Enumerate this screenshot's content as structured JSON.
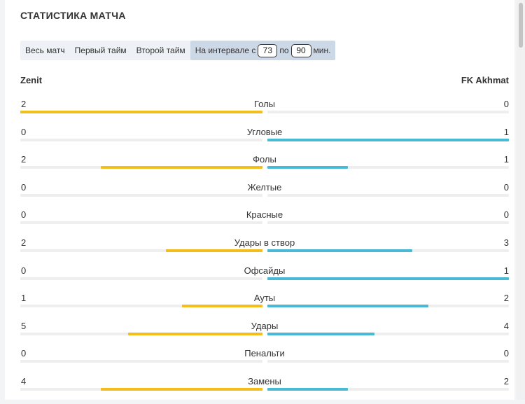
{
  "title": "СТАТИСТИКА МАТЧА",
  "tabs": {
    "full_match": "Весь матч",
    "first_half": "Первый тайм",
    "second_half": "Второй тайм",
    "interval_prefix": "На интервале с",
    "interval_from": "73",
    "interval_mid": "по",
    "interval_to": "90",
    "interval_suffix": "мин."
  },
  "teams": {
    "home": "Zenit",
    "away": "FK Akhmat"
  },
  "colors": {
    "home": "#f2bd1d",
    "away": "#4ab9d6",
    "track": "#eeeeee"
  },
  "stats": [
    {
      "label": "Голы",
      "home": "2",
      "away": "0",
      "home_share": 1.0,
      "away_share": 0.0
    },
    {
      "label": "Угловые",
      "home": "0",
      "away": "1",
      "home_share": 0.0,
      "away_share": 1.0
    },
    {
      "label": "Фолы",
      "home": "2",
      "away": "1",
      "home_share": 0.667,
      "away_share": 0.333
    },
    {
      "label": "Желтые",
      "home": "0",
      "away": "0",
      "home_share": 0.0,
      "away_share": 0.0
    },
    {
      "label": "Красные",
      "home": "0",
      "away": "0",
      "home_share": 0.0,
      "away_share": 0.0
    },
    {
      "label": "Удары в створ",
      "home": "2",
      "away": "3",
      "home_share": 0.4,
      "away_share": 0.6
    },
    {
      "label": "Офсайды",
      "home": "0",
      "away": "1",
      "home_share": 0.0,
      "away_share": 1.0
    },
    {
      "label": "Ауты",
      "home": "1",
      "away": "2",
      "home_share": 0.333,
      "away_share": 0.667
    },
    {
      "label": "Удары",
      "home": "5",
      "away": "4",
      "home_share": 0.556,
      "away_share": 0.444
    },
    {
      "label": "Пенальти",
      "home": "0",
      "away": "0",
      "home_share": 0.0,
      "away_share": 0.0
    },
    {
      "label": "Замены",
      "home": "4",
      "away": "2",
      "home_share": 0.667,
      "away_share": 0.333
    }
  ]
}
